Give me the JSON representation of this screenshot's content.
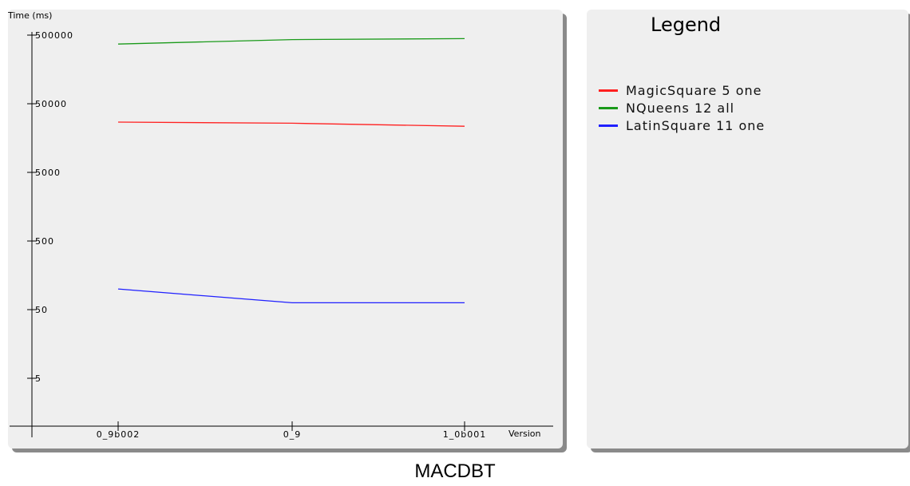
{
  "caption": "MACDBT",
  "legend": {
    "title": "Legend",
    "items": [
      {
        "label": "MagicSquare 5 one",
        "color": "#ff2020"
      },
      {
        "label": "NQueens 12 all",
        "color": "#1a9a1a"
      },
      {
        "label": "LatinSquare 11 one",
        "color": "#2020ff"
      }
    ]
  },
  "chart_data": {
    "type": "line",
    "xlabel": "Version",
    "ylabel": "Time (ms)",
    "y_scale": "log",
    "categories": [
      "0_9b002",
      "0_9",
      "1_0b001"
    ],
    "y_ticks": [
      {
        "value": 5,
        "label": "5"
      },
      {
        "value": 50,
        "label": "50"
      },
      {
        "value": 500,
        "label": "500"
      },
      {
        "value": 5000,
        "label": "5000"
      },
      {
        "value": 50000,
        "label": "50000"
      },
      {
        "value": 500000,
        "label": "500000"
      }
    ],
    "series": [
      {
        "name": "MagicSquare 5 one",
        "color": "#ff2020",
        "values": [
          27000,
          26000,
          23500
        ]
      },
      {
        "name": "NQueens 12 all",
        "color": "#1a9a1a",
        "values": [
          370000,
          430000,
          445000
        ]
      },
      {
        "name": "LatinSquare 11 one",
        "color": "#2020ff",
        "values": [
          100,
          63,
          63
        ]
      }
    ]
  }
}
